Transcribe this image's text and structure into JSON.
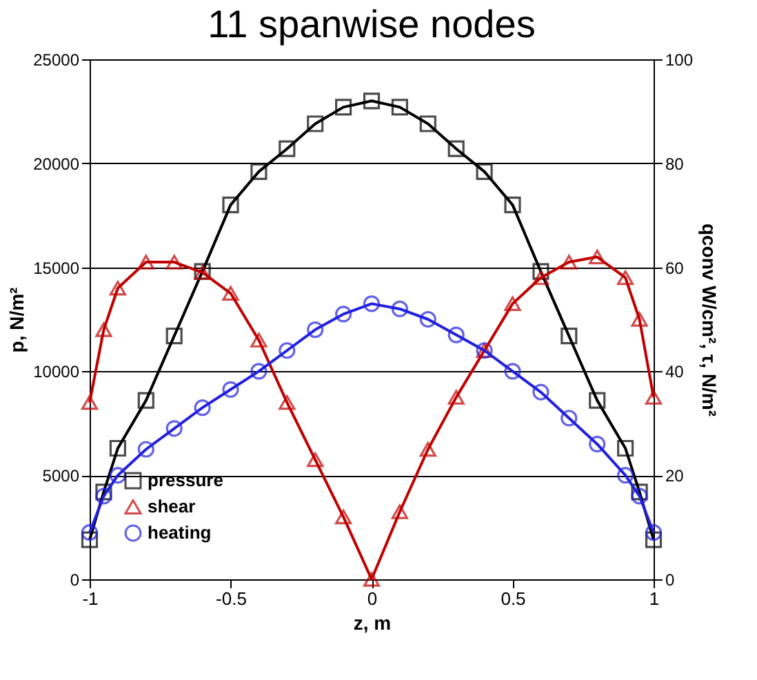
{
  "chart_data": {
    "type": "line",
    "title": "11 spanwise nodes",
    "xlabel": "z, m",
    "ylabel": "p, N/m²",
    "y2label": "qconv W/cm², τ, N/m²",
    "x": [
      -1,
      -0.95,
      -0.9,
      -0.8,
      -0.7,
      -0.6,
      -0.5,
      -0.4,
      -0.3,
      -0.2,
      -0.1,
      0,
      0.1,
      0.2,
      0.3,
      0.4,
      0.5,
      0.6,
      0.7,
      0.8,
      0.9,
      0.95,
      1
    ],
    "series": [
      {
        "name": "pressure",
        "color": "#000000",
        "marker": "square",
        "values": [
          1900,
          4200,
          6300,
          8600,
          11700,
          14800,
          18000,
          19600,
          20700,
          21900,
          22700,
          23000,
          22700,
          21900,
          20700,
          19600,
          18000,
          14800,
          11700,
          8600,
          6300,
          4200,
          1900
        ]
      },
      {
        "name": "shear",
        "color": "#c00000",
        "marker": "triangle",
        "axis": "y2",
        "values": [
          34,
          48,
          56,
          61,
          61,
          59,
          55,
          46,
          34,
          23,
          12,
          0,
          13,
          25,
          35,
          44,
          53,
          58,
          61,
          62,
          58,
          50,
          35
        ]
      },
      {
        "name": "heating",
        "color": "#2020e0",
        "marker": "circle",
        "axis": "y2",
        "values": [
          9,
          16,
          20,
          25,
          29,
          33,
          36.5,
          40,
          44,
          48,
          51,
          53,
          52,
          50,
          47,
          44,
          40,
          36,
          31,
          26,
          20,
          16,
          9
        ]
      }
    ],
    "xlim": [
      -1,
      1
    ],
    "xticks": [
      -1,
      -0.5,
      0,
      0.5,
      1
    ],
    "ylim": [
      0,
      25000
    ],
    "yticks": [
      0,
      5000,
      10000,
      15000,
      20000,
      25000
    ],
    "y2lim": [
      0,
      100
    ],
    "y2ticks": [
      0,
      20,
      40,
      60,
      80,
      100
    ],
    "grid": "y",
    "legend": "bottom left",
    "line_style": "solid"
  }
}
